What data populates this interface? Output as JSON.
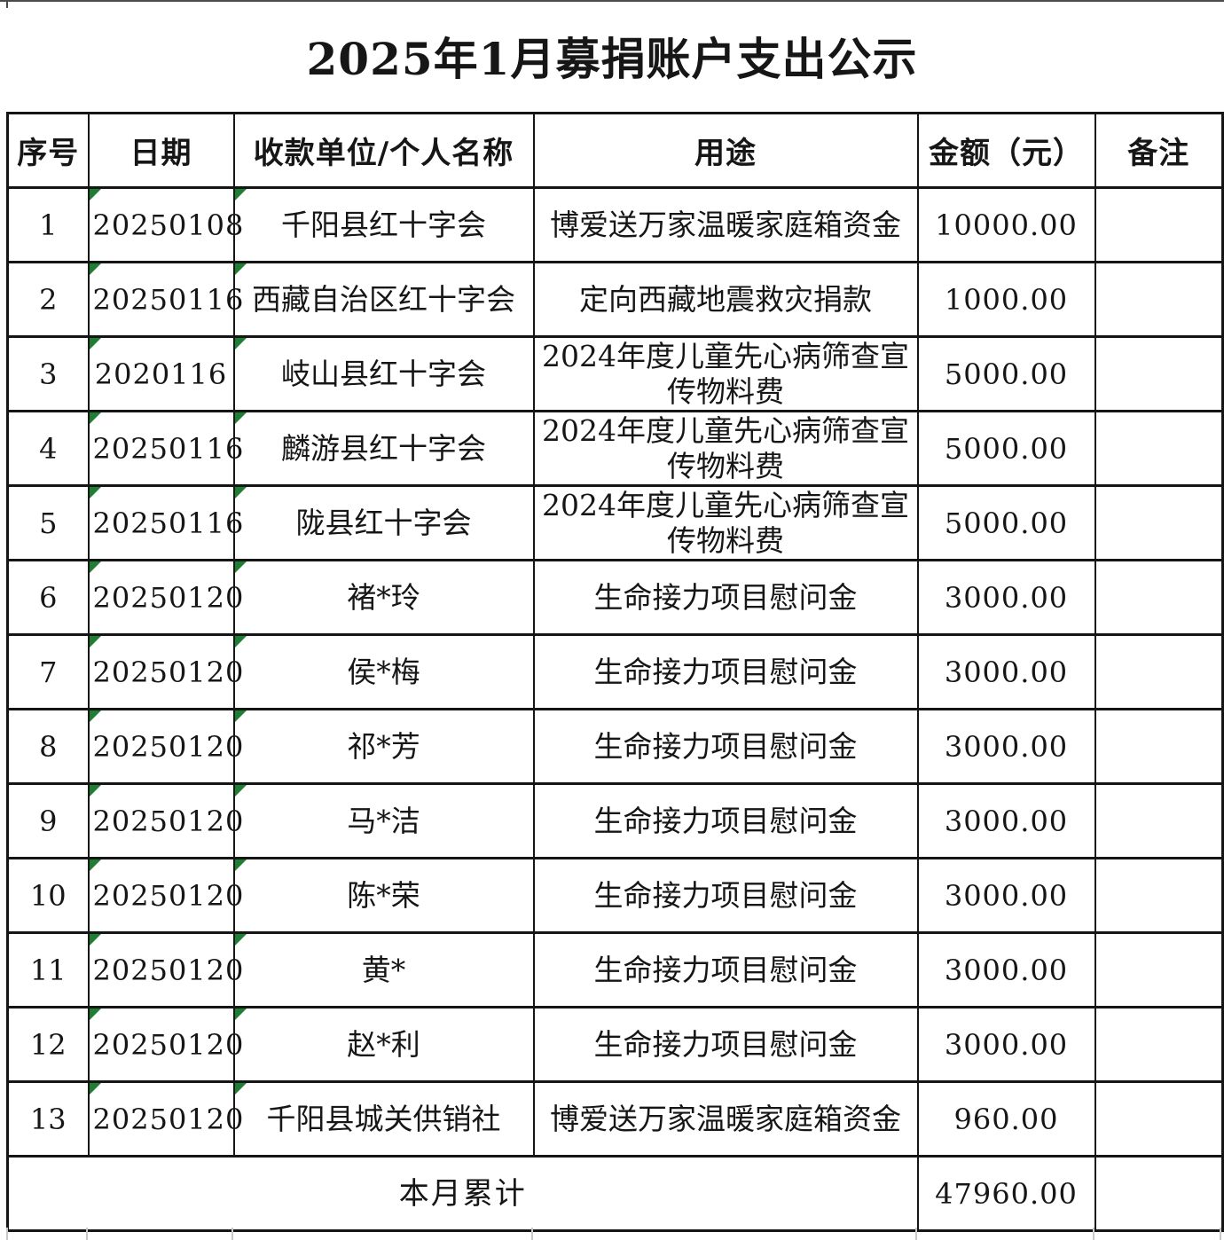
{
  "title": "2025年1月募捐账户支出公示",
  "table": {
    "headers": [
      "序号",
      "日期",
      "收款单位/个人名称",
      "用途",
      "金额（元）",
      "备注"
    ],
    "rows": [
      {
        "no": "1",
        "date": "20250108",
        "payee": "千阳县红十字会",
        "purpose": "博爱送万家温暖家庭箱资金",
        "amount": "10000.00",
        "note": ""
      },
      {
        "no": "2",
        "date": "20250116",
        "payee": "西藏自治区红十字会",
        "purpose": "定向西藏地震救灾捐款",
        "amount": "1000.00",
        "note": ""
      },
      {
        "no": "3",
        "date": "2020116",
        "payee": "岐山县红十字会",
        "purpose": "2024年度儿童先心病筛查宣传物料费",
        "amount": "5000.00",
        "note": ""
      },
      {
        "no": "4",
        "date": "20250116",
        "payee": "麟游县红十字会",
        "purpose": "2024年度儿童先心病筛查宣传物料费",
        "amount": "5000.00",
        "note": ""
      },
      {
        "no": "5",
        "date": "20250116",
        "payee": "陇县红十字会",
        "purpose": "2024年度儿童先心病筛查宣传物料费",
        "amount": "5000.00",
        "note": ""
      },
      {
        "no": "6",
        "date": "20250120",
        "payee": "褚*玲",
        "purpose": "生命接力项目慰问金",
        "amount": "3000.00",
        "note": ""
      },
      {
        "no": "7",
        "date": "20250120",
        "payee": "侯*梅",
        "purpose": "生命接力项目慰问金",
        "amount": "3000.00",
        "note": ""
      },
      {
        "no": "8",
        "date": "20250120",
        "payee": "祁*芳",
        "purpose": "生命接力项目慰问金",
        "amount": "3000.00",
        "note": ""
      },
      {
        "no": "9",
        "date": "20250120",
        "payee": "马*洁",
        "purpose": "生命接力项目慰问金",
        "amount": "3000.00",
        "note": ""
      },
      {
        "no": "10",
        "date": "20250120",
        "payee": "陈*荣",
        "purpose": "生命接力项目慰问金",
        "amount": "3000.00",
        "note": ""
      },
      {
        "no": "11",
        "date": "20250120",
        "payee": "黄*",
        "purpose": "生命接力项目慰问金",
        "amount": "3000.00",
        "note": ""
      },
      {
        "no": "12",
        "date": "20250120",
        "payee": "赵*利",
        "purpose": "生命接力项目慰问金",
        "amount": "3000.00",
        "note": ""
      },
      {
        "no": "13",
        "date": "20250120",
        "payee": "千阳县城关供销社",
        "purpose": "博爱送万家温暖家庭箱资金",
        "amount": "960.00",
        "note": ""
      }
    ],
    "total": {
      "label": "本月累计",
      "amount": "47960.00",
      "note": ""
    }
  },
  "icons": {
    "error_indicator": "excel-text-number-error-triangle"
  },
  "colors": {
    "error_indicator_green": "#1e7e34",
    "table_border": "#151515",
    "faint_gridline": "#c9c9c9",
    "background": "#ffffff"
  }
}
